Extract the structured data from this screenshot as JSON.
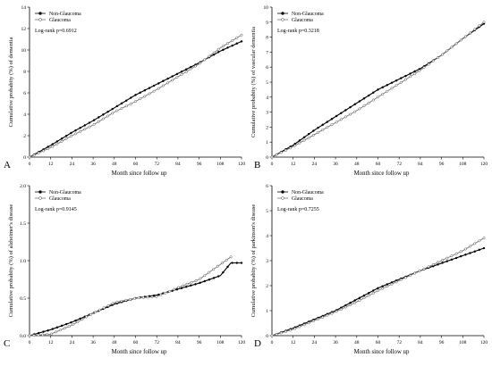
{
  "chart_data": [
    {
      "type": "line",
      "panel_label": "A",
      "xlabel": "Month since follow up",
      "ylabel": "Cumulative probabity (%) of dementia",
      "xlim": [
        0,
        120
      ],
      "ylim": [
        0,
        14
      ],
      "xticks": [
        "0",
        "12",
        "24",
        "36",
        "48",
        "60",
        "72",
        "84",
        "96",
        "108",
        "120"
      ],
      "yticks": [
        "0",
        "2",
        "4",
        "6",
        "8",
        "10",
        "12",
        "14"
      ],
      "legend_position": "top-left",
      "annotation": "Log-rank p=0.6912",
      "series": [
        {
          "name": "Non-Glaucoma",
          "marker": "filled",
          "x": [
            0,
            12,
            24,
            36,
            48,
            60,
            72,
            84,
            96,
            108,
            120
          ],
          "y": [
            0,
            1.1,
            2.3,
            3.4,
            4.6,
            5.8,
            6.8,
            7.8,
            8.8,
            9.9,
            10.8
          ]
        },
        {
          "name": "Glaucoma",
          "marker": "open",
          "x": [
            0,
            12,
            24,
            36,
            48,
            60,
            72,
            84,
            96,
            108,
            120
          ],
          "y": [
            0,
            0.9,
            2.0,
            3.0,
            4.2,
            5.2,
            6.3,
            7.5,
            8.7,
            10.2,
            11.4
          ]
        }
      ]
    },
    {
      "type": "line",
      "panel_label": "B",
      "xlabel": "Month since follow up",
      "ylabel": "Cumulative probabity (%) of vascular dementia",
      "xlim": [
        0,
        120
      ],
      "ylim": [
        0,
        10
      ],
      "xticks": [
        "0",
        "12",
        "24",
        "36",
        "48",
        "60",
        "72",
        "84",
        "96",
        "108",
        "120"
      ],
      "yticks": [
        "0",
        "1",
        "2",
        "3",
        "4",
        "5",
        "6",
        "7",
        "8",
        "9",
        "10"
      ],
      "legend_position": "top-left",
      "annotation": "Log-rank p=0.3218",
      "series": [
        {
          "name": "Non-Glaucoma",
          "marker": "filled",
          "x": [
            0,
            12,
            24,
            36,
            48,
            60,
            72,
            84,
            96,
            108,
            120
          ],
          "y": [
            0,
            0.8,
            1.8,
            2.7,
            3.6,
            4.5,
            5.2,
            5.9,
            6.8,
            7.9,
            8.9
          ]
        },
        {
          "name": "Glaucoma",
          "marker": "open",
          "x": [
            0,
            12,
            24,
            36,
            48,
            60,
            72,
            84,
            96,
            108,
            120
          ],
          "y": [
            0,
            0.7,
            1.5,
            2.3,
            3.1,
            4.0,
            4.9,
            5.8,
            6.8,
            7.9,
            9.0
          ]
        }
      ]
    },
    {
      "type": "line",
      "panel_label": "C",
      "xlabel": "Month since follow up",
      "ylabel": "Cumulative probabity (%) of alzheimer's disease",
      "xlim": [
        0,
        120
      ],
      "ylim": [
        0,
        2.0
      ],
      "xticks": [
        "0",
        "12",
        "24",
        "36",
        "48",
        "60",
        "72",
        "84",
        "96",
        "108",
        "120"
      ],
      "yticks": [
        "0.0",
        "0.5",
        "1.0",
        "1.5",
        "2.0"
      ],
      "legend_position": "top-left",
      "annotation": "Log-rank p=0.9145",
      "series": [
        {
          "name": "Non-Glaucoma",
          "marker": "filled",
          "x": [
            0,
            12,
            24,
            36,
            48,
            60,
            72,
            84,
            96,
            108,
            114,
            120
          ],
          "y": [
            0,
            0.08,
            0.18,
            0.3,
            0.42,
            0.5,
            0.54,
            0.62,
            0.7,
            0.8,
            0.97,
            0.97
          ]
        },
        {
          "name": "Glaucoma",
          "marker": "open",
          "x": [
            0,
            12,
            24,
            36,
            48,
            60,
            72,
            84,
            96,
            108,
            114
          ],
          "y": [
            0,
            0.02,
            0.14,
            0.3,
            0.44,
            0.5,
            0.52,
            0.64,
            0.75,
            0.95,
            1.05
          ]
        }
      ]
    },
    {
      "type": "line",
      "panel_label": "D",
      "xlabel": "Month since follow up",
      "ylabel": "Cumulative probabity (%) of parkinson's disease",
      "xlim": [
        0,
        120
      ],
      "ylim": [
        0,
        6
      ],
      "xticks": [
        "0",
        "12",
        "24",
        "36",
        "48",
        "60",
        "72",
        "84",
        "96",
        "108",
        "120"
      ],
      "yticks": [
        "0",
        "1",
        "2",
        "3",
        "4",
        "5",
        "6"
      ],
      "legend_position": "top-left",
      "annotation": "Log-rank p=0.7255",
      "series": [
        {
          "name": "Non-Glaucoma",
          "marker": "filled",
          "x": [
            0,
            12,
            24,
            36,
            48,
            60,
            72,
            84,
            96,
            108,
            120
          ],
          "y": [
            0,
            0.3,
            0.65,
            1.0,
            1.45,
            1.9,
            2.25,
            2.6,
            2.9,
            3.2,
            3.5
          ]
        },
        {
          "name": "Glaucoma",
          "marker": "open",
          "x": [
            0,
            12,
            24,
            36,
            48,
            60,
            72,
            84,
            96,
            108,
            120
          ],
          "y": [
            0,
            0.25,
            0.6,
            0.95,
            1.35,
            1.8,
            2.2,
            2.6,
            3.0,
            3.4,
            3.9
          ]
        }
      ]
    }
  ]
}
